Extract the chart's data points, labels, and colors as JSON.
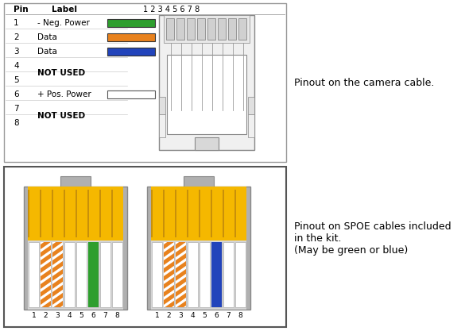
{
  "bg_color": "#ffffff",
  "right_text1": "Pinout on the camera cable.",
  "right_text2": "Pinout on SPOE cables included\nin the kit.\n(May be green or blue)",
  "pin_rows": [
    {
      "pin": "1",
      "label": "- Neg. Power",
      "color": "#2e9e2e"
    },
    {
      "pin": "2",
      "label": "Data",
      "color": "#e8821e"
    },
    {
      "pin": "3",
      "label": "Data",
      "color": "#2244bb"
    },
    {
      "pin": "4",
      "label": null,
      "color": null
    },
    {
      "pin": "5",
      "label": "NOT USED",
      "color": null,
      "group_above": true
    },
    {
      "pin": "6",
      "label": "+ Pos. Power",
      "color": "#ffffff"
    },
    {
      "pin": "7",
      "label": null,
      "color": null
    },
    {
      "pin": "8",
      "label": "NOT USED",
      "color": null,
      "group_above": true
    }
  ],
  "yellow_color": "#f5b800",
  "gray_color": "#b0b0b0",
  "light_gray": "#cccccc",
  "orange_color": "#e8821e",
  "green_color": "#2e9e2e",
  "blue_color": "#2244bb",
  "left_wire_colors": [
    "w",
    "o",
    "o",
    "w",
    "w",
    "g",
    "w",
    "w"
  ],
  "right_wire_colors": [
    "w",
    "o",
    "o",
    "w",
    "w",
    "b",
    "w",
    "w"
  ]
}
